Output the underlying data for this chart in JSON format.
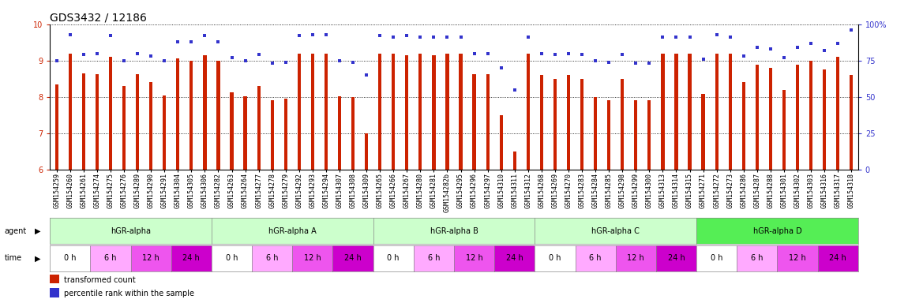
{
  "title": "GDS3432 / 12186",
  "xlabels": [
    "GSM154259",
    "GSM154260",
    "GSM154261",
    "GSM154274",
    "GSM154275",
    "GSM154276",
    "GSM154289",
    "GSM154290",
    "GSM154291",
    "GSM154304",
    "GSM154305",
    "GSM154306",
    "GSM154282",
    "GSM154263",
    "GSM154264",
    "GSM154277",
    "GSM154278",
    "GSM154279",
    "GSM154292",
    "GSM154293",
    "GSM154294",
    "GSM154307",
    "GSM154308",
    "GSM154309",
    "GSM154265",
    "GSM154266",
    "GSM154267",
    "GSM154280",
    "GSM154281",
    "GSM154282b",
    "GSM154295",
    "GSM154296",
    "GSM154297",
    "GSM154310",
    "GSM154311",
    "GSM154312",
    "GSM154268",
    "GSM154269",
    "GSM154270",
    "GSM154283",
    "GSM154284",
    "GSM154285",
    "GSM154298",
    "GSM154299",
    "GSM154300",
    "GSM154313",
    "GSM154314",
    "GSM154315",
    "GSM154271",
    "GSM154272",
    "GSM154273",
    "GSM154286",
    "GSM154287",
    "GSM154288",
    "GSM154301",
    "GSM154302",
    "GSM154303",
    "GSM154316",
    "GSM154317",
    "GSM154318"
  ],
  "bar_values": [
    8.35,
    9.2,
    8.65,
    8.62,
    9.1,
    8.3,
    8.62,
    8.4,
    8.05,
    9.05,
    9.0,
    9.15,
    9.0,
    8.12,
    8.02,
    8.3,
    7.92,
    7.95,
    9.2,
    9.2,
    9.2,
    8.02,
    8.0,
    7.0,
    9.2,
    9.2,
    9.15,
    9.2,
    9.15,
    9.2,
    9.2,
    8.62,
    8.62,
    7.5,
    6.5,
    9.2,
    8.6,
    8.5,
    8.6,
    8.5,
    8.0,
    7.92,
    8.5,
    7.9,
    7.9,
    9.2,
    9.2,
    9.2,
    8.08,
    9.2,
    9.2,
    8.4,
    8.88,
    8.8,
    8.2,
    8.88,
    9.0,
    8.75,
    9.1,
    8.6
  ],
  "dot_values": [
    75,
    93,
    79,
    80,
    92,
    75,
    80,
    78,
    75,
    88,
    88,
    92,
    88,
    77,
    75,
    79,
    73,
    74,
    92,
    93,
    93,
    75,
    74,
    65,
    92,
    91,
    92,
    91,
    91,
    91,
    91,
    80,
    80,
    70,
    55,
    91,
    80,
    79,
    80,
    79,
    75,
    74,
    79,
    73,
    73,
    91,
    91,
    91,
    76,
    93,
    91,
    78,
    84,
    83,
    77,
    84,
    87,
    82,
    87,
    96
  ],
  "ylim_left": [
    6,
    10
  ],
  "ylim_right": [
    0,
    100
  ],
  "yticks_left": [
    6,
    7,
    8,
    9,
    10
  ],
  "yticks_right": [
    0,
    25,
    50,
    75,
    100
  ],
  "bar_color": "#cc2200",
  "dot_color": "#3333cc",
  "bg_color": "#f0f0f0",
  "agent_labels": [
    "hGR-alpha",
    "hGR-alpha A",
    "hGR-alpha B",
    "hGR-alpha C",
    "hGR-alpha D"
  ],
  "agent_colors": [
    "#ccffcc",
    "#ccffcc",
    "#ccffcc",
    "#ccffcc",
    "#55ee55"
  ],
  "time_labels": [
    "0 h",
    "6 h",
    "12 h",
    "24 h"
  ],
  "time_colors": [
    "#ffffff",
    "#ffaaff",
    "#ee55ee",
    "#cc00cc"
  ],
  "n_per_agent": 12,
  "n_time_subs": 4,
  "legend_bar_label": "transformed count",
  "legend_dot_label": "percentile rank within the sample",
  "title_fontsize": 10,
  "tick_fontsize": 6,
  "label_fontsize": 7,
  "cell_fontsize": 7
}
